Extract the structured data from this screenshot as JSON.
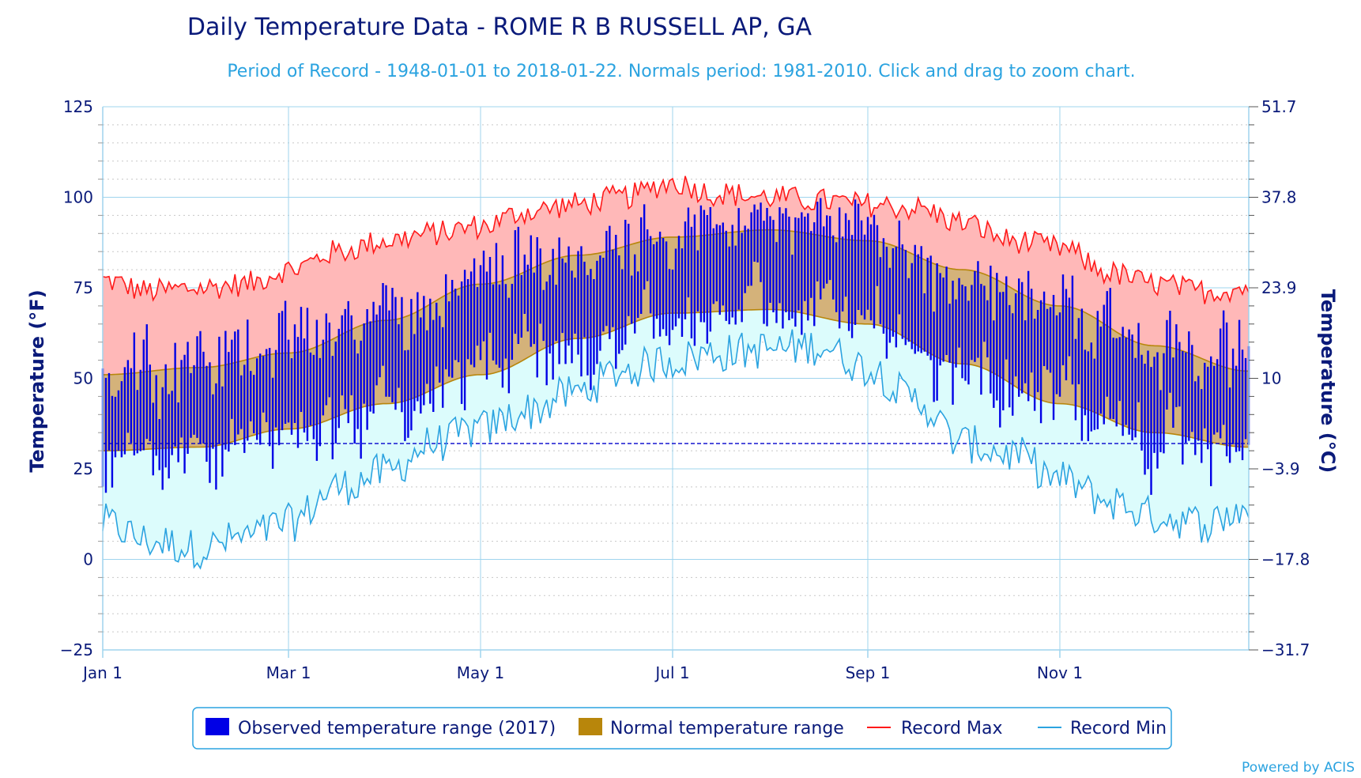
{
  "chart_data": {
    "type": "area",
    "title": "Daily Temperature Data - ROME R B RUSSELL AP, GA",
    "subtitle": "Period of Record - 1948-01-01 to 2018-01-22. Normals period: 1981-2010. Click and drag to zoom chart.",
    "ylabel_left": "Temperature (°F)",
    "ylabel_right": "Temperature (°C)",
    "ylim": [
      -25,
      125
    ],
    "y_ticks_f": [
      "125",
      "100",
      "75",
      "50",
      "25",
      "0",
      "−25"
    ],
    "y_ticks_c": [
      "51.7",
      "37.8",
      "23.9",
      "10",
      "−3.9",
      "−17.8",
      "−31.7"
    ],
    "x_ticks": [
      {
        "label": "Jan 1",
        "day": 0
      },
      {
        "label": "Mar 1",
        "day": 59
      },
      {
        "label": "May 1",
        "day": 120
      },
      {
        "label": "Jul 1",
        "day": 181
      },
      {
        "label": "Sep 1",
        "day": 243
      },
      {
        "label": "Nov 1",
        "day": 304
      }
    ],
    "freezing_line_f": 32,
    "grid": true,
    "legend_position": "bottom",
    "colors": {
      "observed": "#0000e6",
      "normal_fill": "#d4b27a",
      "normal_line": "#b8860b",
      "record_max_line": "#ff1a1a",
      "record_max_fill": "#ffb8b8",
      "record_min_line": "#2ba3e0",
      "record_min_fill": "#dcfcfc",
      "freeze_line": "#0000cc"
    },
    "series": [
      {
        "name": "Observed temperature range (2017)",
        "kind": "daily-range-bars"
      },
      {
        "name": "Normal temperature range",
        "kind": "band",
        "max_anchors": [
          [
            0,
            51
          ],
          [
            31,
            53
          ],
          [
            59,
            57
          ],
          [
            90,
            66
          ],
          [
            120,
            76
          ],
          [
            151,
            84
          ],
          [
            181,
            89
          ],
          [
            212,
            91
          ],
          [
            243,
            88
          ],
          [
            273,
            80
          ],
          [
            304,
            70
          ],
          [
            334,
            59
          ],
          [
            364,
            52
          ]
        ],
        "min_anchors": [
          [
            0,
            30
          ],
          [
            31,
            31
          ],
          [
            59,
            36
          ],
          [
            90,
            43
          ],
          [
            120,
            51
          ],
          [
            151,
            61
          ],
          [
            181,
            68
          ],
          [
            212,
            69
          ],
          [
            243,
            65
          ],
          [
            273,
            54
          ],
          [
            304,
            43
          ],
          [
            334,
            35
          ],
          [
            364,
            31
          ]
        ]
      },
      {
        "name": "Record Max",
        "kind": "line",
        "anchors": [
          [
            0,
            77
          ],
          [
            15,
            74
          ],
          [
            31,
            75
          ],
          [
            45,
            76
          ],
          [
            59,
            80
          ],
          [
            75,
            85
          ],
          [
            90,
            88
          ],
          [
            105,
            90
          ],
          [
            120,
            92
          ],
          [
            135,
            96
          ],
          [
            150,
            98
          ],
          [
            165,
            100
          ],
          [
            181,
            104
          ],
          [
            195,
            101
          ],
          [
            212,
            100
          ],
          [
            228,
            99
          ],
          [
            243,
            98
          ],
          [
            258,
            97
          ],
          [
            273,
            93
          ],
          [
            289,
            88
          ],
          [
            304,
            86
          ],
          [
            320,
            79
          ],
          [
            334,
            76
          ],
          [
            350,
            74
          ],
          [
            364,
            75
          ]
        ]
      },
      {
        "name": "Record Min",
        "kind": "line",
        "anchors": [
          [
            0,
            10
          ],
          [
            15,
            5
          ],
          [
            31,
            3
          ],
          [
            45,
            6
          ],
          [
            59,
            10
          ],
          [
            75,
            20
          ],
          [
            90,
            24
          ],
          [
            105,
            32
          ],
          [
            120,
            36
          ],
          [
            135,
            41
          ],
          [
            150,
            46
          ],
          [
            165,
            52
          ],
          [
            181,
            55
          ],
          [
            195,
            57
          ],
          [
            212,
            58
          ],
          [
            228,
            59
          ],
          [
            243,
            53
          ],
          [
            258,
            44
          ],
          [
            273,
            32
          ],
          [
            289,
            29
          ],
          [
            304,
            22
          ],
          [
            320,
            16
          ],
          [
            334,
            12
          ],
          [
            350,
            10
          ],
          [
            364,
            14
          ]
        ]
      }
    ]
  },
  "legend": {
    "observed": "Observed temperature range (2017)",
    "normal": "Normal temperature range",
    "record_max": "Record Max",
    "record_min": "Record Min"
  },
  "credit": "Powered by ACIS"
}
